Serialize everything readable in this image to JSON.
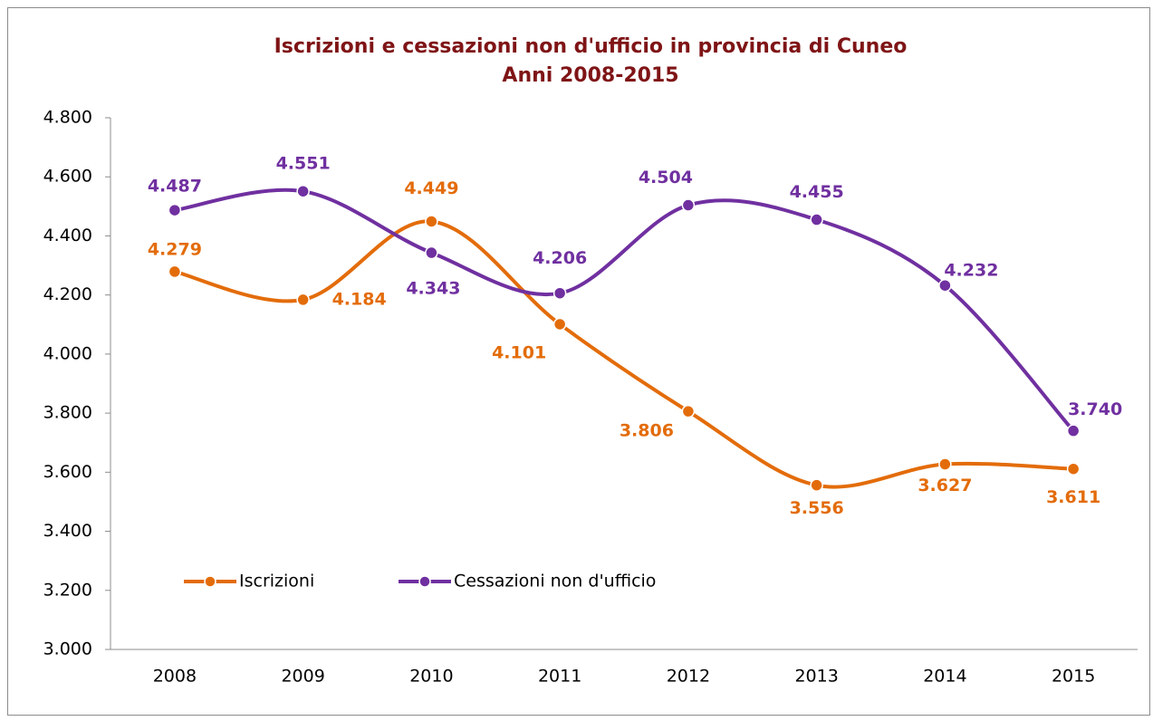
{
  "chart_data": {
    "type": "line",
    "title": "Iscrizioni e cessazioni non d'ufficio in provincia di Cuneo",
    "subtitle": "Anni 2008-2015",
    "categories": [
      "2008",
      "2009",
      "2010",
      "2011",
      "2012",
      "2013",
      "2014",
      "2015"
    ],
    "series": [
      {
        "name": "Iscrizioni",
        "color": "#e36c0a",
        "values": [
          4279,
          4184,
          4449,
          4101,
          3806,
          3556,
          3627,
          3611
        ],
        "value_labels": [
          "4.279",
          "4.184",
          "4.449",
          "4.101",
          "3.806",
          "3.556",
          "3.627",
          "3.611"
        ]
      },
      {
        "name": "Cessazioni non d'ufficio",
        "color": "#7030a0",
        "values": [
          4487,
          4551,
          4343,
          4206,
          4504,
          4455,
          4232,
          3740
        ],
        "value_labels": [
          "4.487",
          "4.551",
          "4.343",
          "4.206",
          "4.504",
          "4.455",
          "4.232",
          "3.740"
        ]
      }
    ],
    "ylim": [
      3000,
      4800
    ],
    "yticks": [
      {
        "value": 3000,
        "label": "3.000"
      },
      {
        "value": 3200,
        "label": "3.200"
      },
      {
        "value": 3400,
        "label": "3.400"
      },
      {
        "value": 3600,
        "label": "3.600"
      },
      {
        "value": 3800,
        "label": "3.800"
      },
      {
        "value": 4000,
        "label": "4.000"
      },
      {
        "value": 4200,
        "label": "4.200"
      },
      {
        "value": 4400,
        "label": "4.400"
      },
      {
        "value": 4600,
        "label": "4.600"
      },
      {
        "value": 4800,
        "label": "4.800"
      }
    ],
    "smooth": true,
    "grid": false
  }
}
